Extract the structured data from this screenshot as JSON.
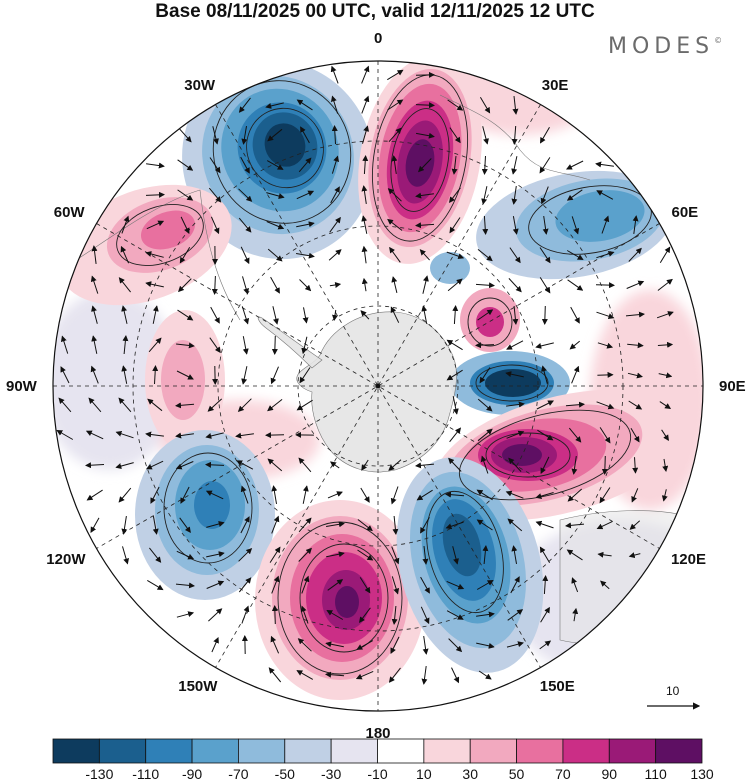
{
  "header": {
    "title": "Base 08/11/2025 00 UTC, valid 12/11/2025 12 UTC",
    "brand": "MODES",
    "brand_mark": "©"
  },
  "map": {
    "projection": "south-polar-stereographic",
    "longitude_labels": [
      {
        "text": "0",
        "angle": 0
      },
      {
        "text": "30E",
        "angle": 30
      },
      {
        "text": "60E",
        "angle": 60
      },
      {
        "text": "90E",
        "angle": 90
      },
      {
        "text": "120E",
        "angle": 120
      },
      {
        "text": "150E",
        "angle": 150
      },
      {
        "text": "180",
        "angle": 180
      },
      {
        "text": "150W",
        "angle": 210
      },
      {
        "text": "120W",
        "angle": 240
      },
      {
        "text": "90W",
        "angle": 270
      },
      {
        "text": "60W",
        "angle": 300
      },
      {
        "text": "30W",
        "angle": 330
      }
    ],
    "vector_reference_label": "10",
    "colors": {
      "land": "#e4e4e4",
      "neutral": "#ffffff"
    }
  },
  "colorbar": {
    "tick_labels": [
      "-130",
      "-110",
      "-90",
      "-70",
      "-50",
      "-30",
      "-10",
      "10",
      "30",
      "50",
      "70",
      "90",
      "110",
      "130"
    ],
    "colors": [
      "#0d3b5e",
      "#1b5f8e",
      "#2f80b7",
      "#5aa1cc",
      "#8fbbdc",
      "#c0d0e5",
      "#e6e4f0",
      "#ffffff",
      "#f9d6dc",
      "#f2a9bf",
      "#e8709f",
      "#cb2e86",
      "#9a1a77",
      "#5e0f63"
    ]
  }
}
